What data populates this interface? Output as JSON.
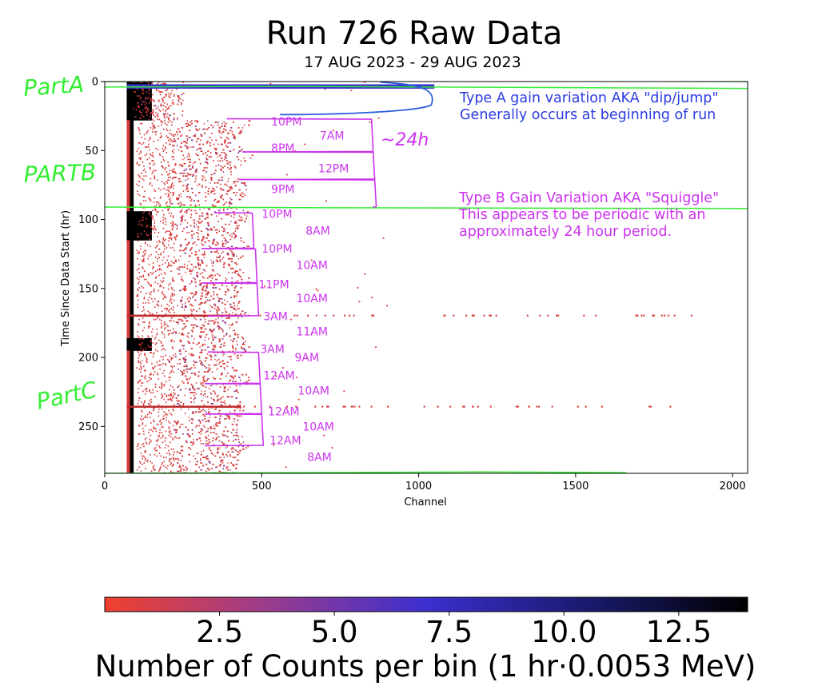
{
  "chart_data": {
    "type": "heatmap",
    "title": "Run 726 Raw Data",
    "subtitle": "17 AUG 2023 - 29 AUG 2023",
    "xlabel": "Channel",
    "ylabel": "Time Since Data Start (hr)",
    "xlim": [
      0,
      2048
    ],
    "ylim": [
      284,
      0
    ],
    "xticks": [
      0,
      500,
      1000,
      1500,
      2000
    ],
    "yticks": [
      0,
      50,
      100,
      150,
      200,
      250
    ],
    "colorbar": {
      "label": "Number of Counts per bin (1 hr·0.0053 MeV)",
      "range": [
        0,
        14
      ],
      "ticks": [
        2.5,
        5.0,
        7.5,
        10.0,
        12.5
      ],
      "tick_labels": [
        "2.5",
        "5.0",
        "7.5",
        "10.0",
        "12.5"
      ],
      "colors": [
        "#f0402e",
        "#9c3c8c",
        "#3b2fcf",
        "#1a1a6e",
        "#000000"
      ]
    },
    "hot_bands_hr": [
      2,
      3,
      4,
      169,
      235
    ],
    "annotations": {
      "parts": [
        "PartA",
        "PARTB",
        "PartC"
      ],
      "type_a": {
        "lines": [
          "Type A gain variation AKA \"dip/jump\"",
          "Generally occurs at beginning of run"
        ],
        "color": "#2b3be0"
      },
      "type_b": {
        "lines": [
          "Type B Gain Variation AKA \"Squiggle\"",
          "This appears to be periodic with an",
          "approximately 24 hour period."
        ],
        "color": "#cc33ee"
      },
      "period_note": "~24h",
      "time_marks": [
        {
          "label": "10PM",
          "channel": 530,
          "hr": 29
        },
        {
          "label": "7AM",
          "channel": 685,
          "hr": 39
        },
        {
          "label": "8PM",
          "channel": 530,
          "hr": 48
        },
        {
          "label": "12PM",
          "channel": 680,
          "hr": 63
        },
        {
          "label": "9PM",
          "channel": 530,
          "hr": 78
        },
        {
          "label": "10PM",
          "channel": 500,
          "hr": 96
        },
        {
          "label": "8AM",
          "channel": 640,
          "hr": 108
        },
        {
          "label": "10PM",
          "channel": 500,
          "hr": 121
        },
        {
          "label": "10AM",
          "channel": 610,
          "hr": 133
        },
        {
          "label": "11PM",
          "channel": 490,
          "hr": 147
        },
        {
          "label": "10AM",
          "channel": 610,
          "hr": 157
        },
        {
          "label": "3AM",
          "channel": 505,
          "hr": 170
        },
        {
          "label": "11AM",
          "channel": 610,
          "hr": 181
        },
        {
          "label": "3AM",
          "channel": 495,
          "hr": 194
        },
        {
          "label": "9AM",
          "channel": 605,
          "hr": 200
        },
        {
          "label": "12AM",
          "channel": 505,
          "hr": 213
        },
        {
          "label": "10AM",
          "channel": 615,
          "hr": 224
        },
        {
          "label": "12AM",
          "channel": 520,
          "hr": 239
        },
        {
          "label": "10AM",
          "channel": 630,
          "hr": 250
        },
        {
          "label": "12AM",
          "channel": 525,
          "hr": 260
        },
        {
          "label": "8AM",
          "channel": 645,
          "hr": 272
        }
      ]
    }
  }
}
